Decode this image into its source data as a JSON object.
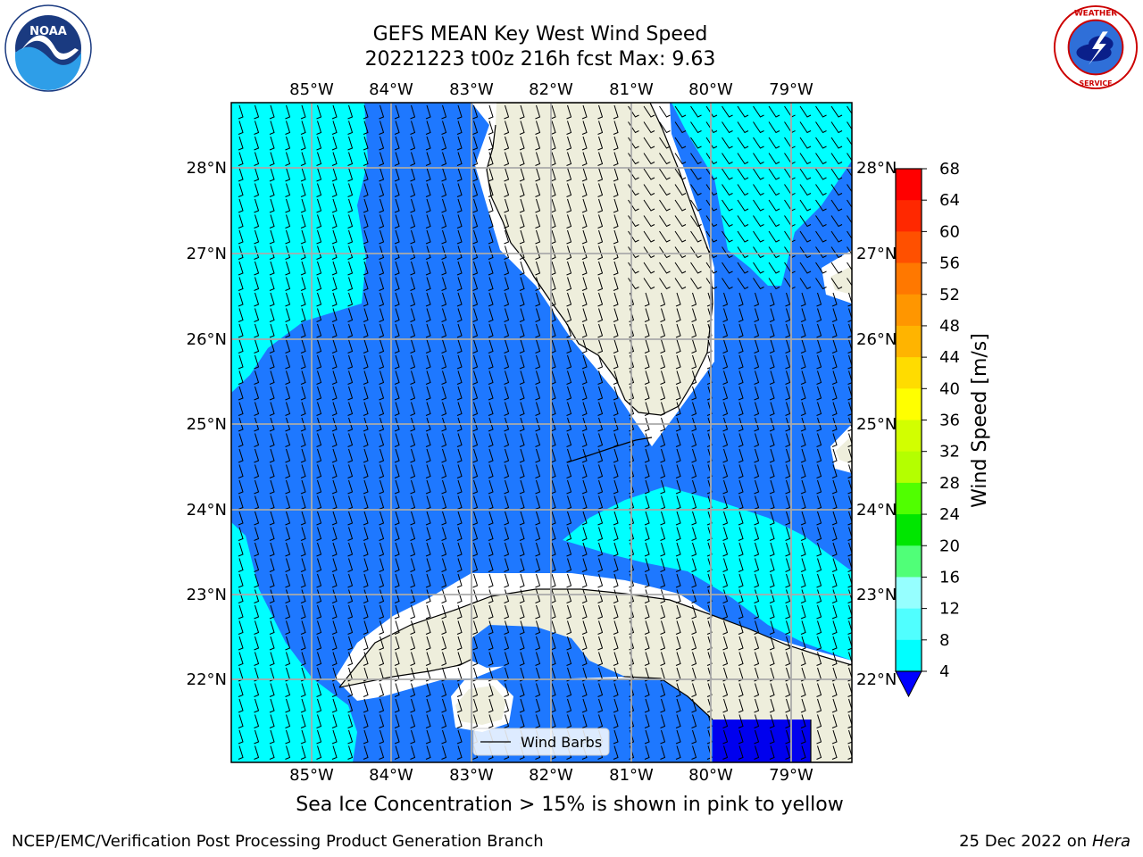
{
  "title_line1": "GEFS MEAN Key West Wind Speed",
  "title_line2": "20221223 t00z 216h fcst   Max: 9.63",
  "logos": {
    "left": "noaa-logo",
    "right": "nws-logo"
  },
  "map": {
    "lon_labels": [
      "85°W",
      "84°W",
      "83°W",
      "82°W",
      "81°W",
      "80°W",
      "79°W"
    ],
    "lat_labels": [
      "28°N",
      "27°N",
      "26°N",
      "25°N",
      "24°N",
      "23°N",
      "22°N"
    ],
    "legend_label": "Wind Barbs",
    "colors": {
      "land": "#eeeedc",
      "wind_4_8": "#1e78ff",
      "wind_8_12": "#00ffff",
      "wind_0_4": "#0000ee",
      "no_data": "#ffffff"
    }
  },
  "colorbar": {
    "label": "Wind Speed [m/s]",
    "ticks": [
      "68",
      "64",
      "60",
      "56",
      "52",
      "48",
      "44",
      "40",
      "36",
      "32",
      "28",
      "24",
      "20",
      "16",
      "12",
      "8",
      "4"
    ],
    "colors": [
      "#ff0000",
      "#ff2800",
      "#ff5000",
      "#ff7800",
      "#ff9600",
      "#ffb400",
      "#ffdc00",
      "#ffff00",
      "#d2ff00",
      "#b4ff00",
      "#50ff00",
      "#00e600",
      "#50ff78",
      "#96ffff",
      "#50ffff",
      "#00ffff",
      "#1e78ff"
    ],
    "under_color": "#0000ff"
  },
  "caption": "Sea Ice Concentration > 15% is shown in pink to yellow",
  "footer": {
    "left": "NCEP/EMC/Verification Post Processing Product Generation Branch",
    "right_date": "25 Dec 2022 on",
    "right_machine": "Hera"
  }
}
